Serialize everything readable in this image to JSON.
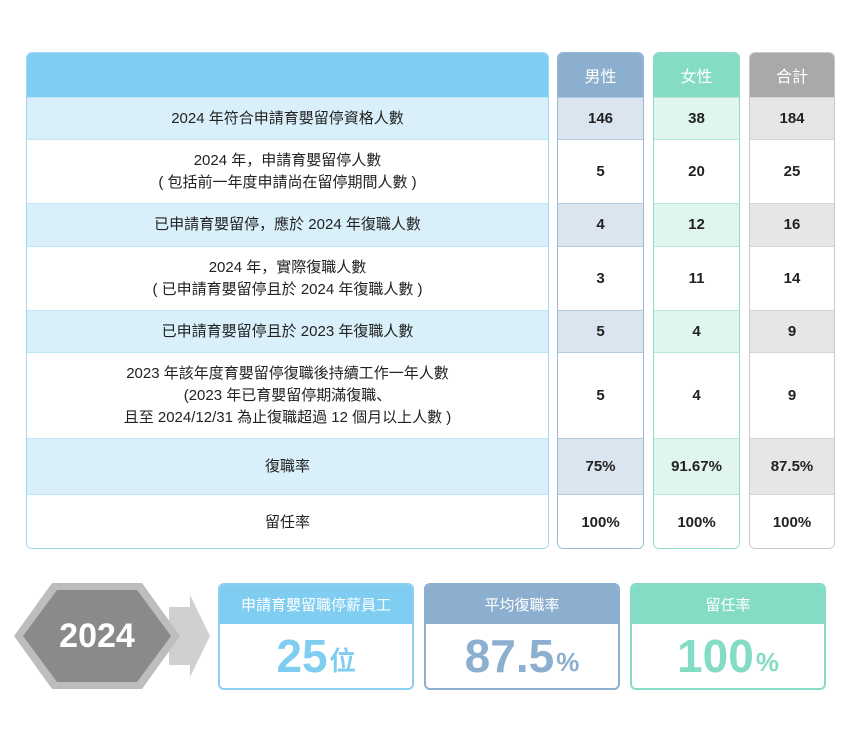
{
  "table": {
    "headers": {
      "label": "",
      "male": "男性",
      "female": "女性",
      "total": "合計"
    },
    "rows": [
      {
        "label": "2024 年符合申請育嬰留停資格人數",
        "male": "146",
        "female": "38",
        "total": "184"
      },
      {
        "label": "2024 年，申請育嬰留停人數\n( 包括前一年度申請尚在留停期間人數 )",
        "male": "5",
        "female": "20",
        "total": "25"
      },
      {
        "label": "已申請育嬰留停，應於 2024 年復職人數",
        "male": "4",
        "female": "12",
        "total": "16"
      },
      {
        "label": "2024 年，實際復職人數\n( 已申請育嬰留停且於 2024 年復職人數 )",
        "male": "3",
        "female": "11",
        "total": "14"
      },
      {
        "label": "已申請育嬰留停且於 2023 年復職人數",
        "male": "5",
        "female": "4",
        "total": "9"
      },
      {
        "label": "2023 年該年度育嬰留停復職後持續工作一年人數\n(2023 年已育嬰留停期滿復職、\n且至 2024/12/31 為止復職超過 12 個月以上人數 )",
        "male": "5",
        "female": "4",
        "total": "9"
      },
      {
        "label": "復職率",
        "male": "75%",
        "female": "91.67%",
        "total": "87.5%"
      },
      {
        "label": "留任率",
        "male": "100%",
        "female": "100%",
        "total": "100%"
      }
    ]
  },
  "summary": {
    "year": "2024",
    "cards": [
      {
        "title": "申請育嬰留職停薪員工",
        "value": "25",
        "unit": "位"
      },
      {
        "title": "平均復職率",
        "value": "87.5",
        "unit": "%"
      },
      {
        "title": "留任率",
        "value": "100",
        "unit": "%"
      }
    ]
  },
  "colors": {
    "label_accent": "#7fcdf1",
    "male_accent": "#8cafcf",
    "female_accent": "#84dcc4",
    "total_accent": "#a9a9a9",
    "hexagon": "#8a8a8a"
  }
}
